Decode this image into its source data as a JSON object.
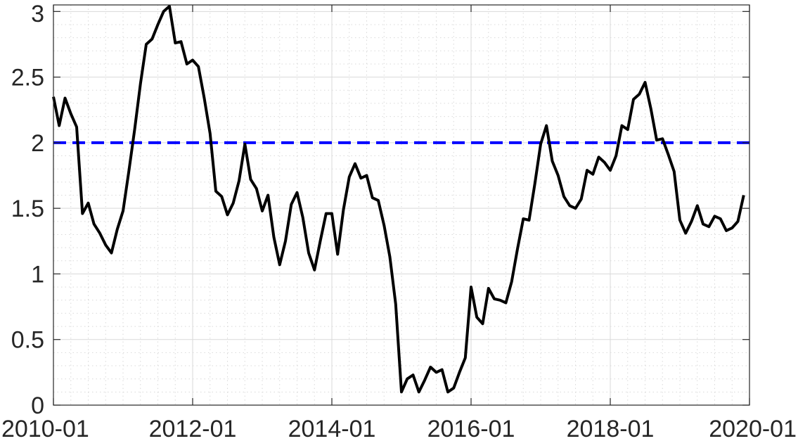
{
  "chart_data": {
    "type": "line",
    "title": "",
    "xlabel": "",
    "ylabel": "",
    "x_tick_labels": [
      "2010-01",
      "2012-01",
      "2014-01",
      "2016-01",
      "2018-01",
      "2020-01"
    ],
    "y_tick_labels": [
      "0",
      "0.5",
      "1",
      "1.5",
      "2",
      "2.5",
      "3"
    ],
    "xlim": [
      2010.0,
      2020.0
    ],
    "ylim": [
      0,
      3.05
    ],
    "grid": true,
    "minor_grid": true,
    "legend": "none",
    "colors": {
      "series": "#000000",
      "reference": "#0000ff",
      "grid": "#d9d9d9",
      "axis": "#262626"
    },
    "reference_line": {
      "y": 2.0,
      "style": "dashed"
    },
    "series": [
      {
        "x": [
          2010.0,
          2010.083,
          2010.167,
          2010.25,
          2010.333,
          2010.417,
          2010.5,
          2010.583,
          2010.667,
          2010.75,
          2010.833,
          2010.917,
          2011.0,
          2011.083,
          2011.167,
          2011.25,
          2011.333,
          2011.417,
          2011.5,
          2011.583,
          2011.667,
          2011.75,
          2011.833,
          2011.917,
          2012.0,
          2012.083,
          2012.167,
          2012.25,
          2012.333,
          2012.417,
          2012.5,
          2012.583,
          2012.667,
          2012.75,
          2012.833,
          2012.917,
          2013.0,
          2013.083,
          2013.167,
          2013.25,
          2013.333,
          2013.417,
          2013.5,
          2013.583,
          2013.667,
          2013.75,
          2013.833,
          2013.917,
          2014.0,
          2014.083,
          2014.167,
          2014.25,
          2014.333,
          2014.417,
          2014.5,
          2014.583,
          2014.667,
          2014.75,
          2014.833,
          2014.917,
          2015.0,
          2015.083,
          2015.167,
          2015.25,
          2015.333,
          2015.417,
          2015.5,
          2015.583,
          2015.667,
          2015.75,
          2015.833,
          2015.917,
          2016.0,
          2016.083,
          2016.167,
          2016.25,
          2016.333,
          2016.417,
          2016.5,
          2016.583,
          2016.667,
          2016.75,
          2016.833,
          2016.917,
          2017.0,
          2017.083,
          2017.167,
          2017.25,
          2017.333,
          2017.417,
          2017.5,
          2017.583,
          2017.667,
          2017.75,
          2017.833,
          2017.917,
          2018.0,
          2018.083,
          2018.167,
          2018.25,
          2018.333,
          2018.417,
          2018.5,
          2018.583,
          2018.667,
          2018.75,
          2018.833,
          2018.917,
          2019.0,
          2019.083,
          2019.167,
          2019.25,
          2019.333,
          2019.417,
          2019.5,
          2019.583,
          2019.667,
          2019.75,
          2019.833,
          2019.917
        ],
        "y": [
          2.35,
          2.13,
          2.34,
          2.22,
          2.12,
          1.46,
          1.54,
          1.38,
          1.31,
          1.22,
          1.16,
          1.34,
          1.48,
          1.78,
          2.1,
          2.45,
          2.75,
          2.79,
          2.9,
          3.0,
          3.04,
          2.76,
          2.77,
          2.6,
          2.63,
          2.58,
          2.34,
          2.07,
          1.63,
          1.59,
          1.45,
          1.54,
          1.71,
          1.99,
          1.72,
          1.65,
          1.48,
          1.6,
          1.28,
          1.07,
          1.25,
          1.53,
          1.62,
          1.43,
          1.16,
          1.03,
          1.25,
          1.46,
          1.46,
          1.15,
          1.49,
          1.74,
          1.84,
          1.73,
          1.75,
          1.58,
          1.56,
          1.37,
          1.13,
          0.77,
          0.1,
          0.2,
          0.23,
          0.1,
          0.19,
          0.29,
          0.25,
          0.27,
          0.1,
          0.13,
          0.25,
          0.36,
          0.9,
          0.67,
          0.62,
          0.89,
          0.81,
          0.8,
          0.78,
          0.94,
          1.19,
          1.42,
          1.41,
          1.69,
          1.99,
          2.13,
          1.86,
          1.75,
          1.59,
          1.52,
          1.5,
          1.57,
          1.79,
          1.76,
          1.89,
          1.85,
          1.79,
          1.9,
          2.13,
          2.1,
          2.33,
          2.37,
          2.46,
          2.26,
          2.02,
          2.03,
          1.91,
          1.78,
          1.41,
          1.31,
          1.4,
          1.52,
          1.38,
          1.36,
          1.44,
          1.42,
          1.33,
          1.35,
          1.4,
          1.6
        ]
      }
    ]
  }
}
